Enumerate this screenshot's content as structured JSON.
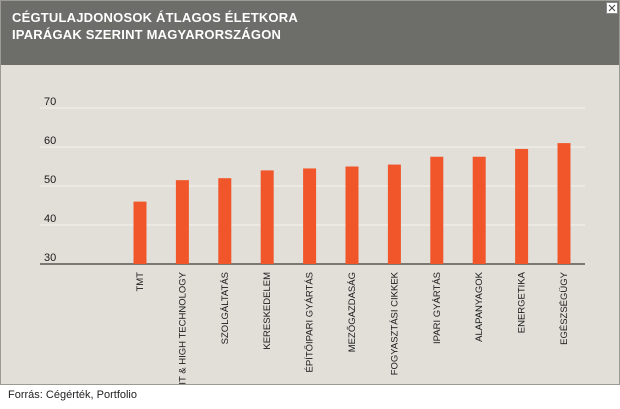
{
  "source": "Forrás: Cégérték, Portfolio",
  "icons": {
    "expand": "expand-icon"
  },
  "colors": {
    "header_bg": "#6d6d69",
    "plot_bg": "#e2dfd9",
    "bar": "#f0562a",
    "grid": "#f4f3f0",
    "frame": "#9d9a94"
  },
  "chart_data": {
    "type": "bar",
    "title": "CÉGTULAJDONOSOK ÁTLAGOS ÉLETKORA IPARÁGAK SZERINT MAGYARORSZÁGON",
    "title_lines": [
      "CÉGTULAJDONOSOK ÁTLAGOS ÉLETKORA",
      "IPARÁGAK SZERINT MAGYARORSZÁGON"
    ],
    "xlabel": "",
    "ylabel": "",
    "ylim": [
      30,
      70
    ],
    "yticks": [
      30,
      40,
      50,
      60,
      70
    ],
    "grid": true,
    "legend": "none",
    "categories": [
      "TMT",
      "IT & HIGH TECHNOLOGY",
      "SZOLGÁLTATÁS",
      "KERESKEDELEM",
      "ÉPÍTŐIPARI GYÁRTÁS",
      "MEZŐGAZDASÁG",
      "FOGYASZTÁSI CIKKEK",
      "IPARI GYÁRTÁS",
      "ALAPANYAGOK",
      "ENERGETIKA",
      "EGÉSZSÉGÜGY"
    ],
    "values": [
      46,
      51.5,
      52,
      54,
      54.5,
      55,
      55.5,
      57.5,
      57.5,
      59.5,
      61
    ]
  }
}
